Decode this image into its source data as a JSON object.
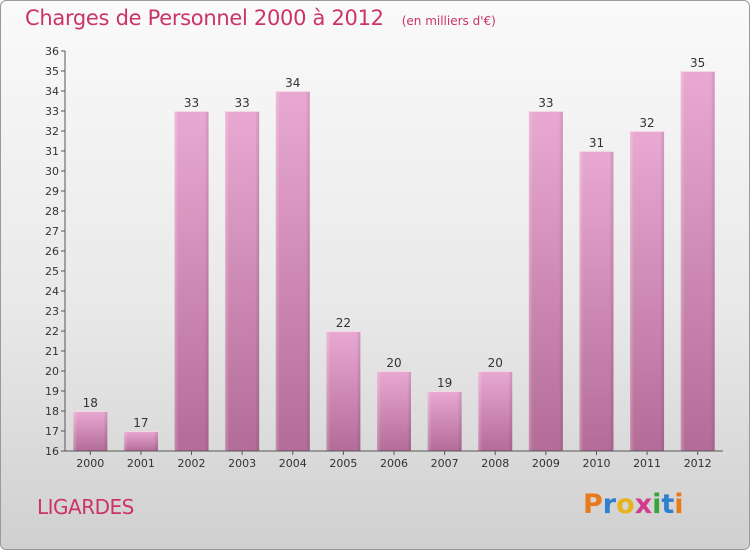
{
  "header": {
    "title": "Charges de Personnel 2000 à 2012",
    "unit": "(en milliers d'€)"
  },
  "footer": {
    "commune": "LIGARDES",
    "logo_text": "Proxiti",
    "logo_colors": [
      "#e87a1c",
      "#2f7fcf",
      "#e8b21c",
      "#d23a8c",
      "#3aa43a",
      "#2f7fcf",
      "#e87a1c"
    ]
  },
  "colors": {
    "title": "#cc3366",
    "bar_top": "#e9a9d2",
    "bar_bottom": "#b36c98",
    "axis": "#444444"
  },
  "chart_data": {
    "type": "bar",
    "title": "Charges de Personnel 2000 à 2012",
    "subtitle": "(en milliers d'€)",
    "categories": [
      "2000",
      "2001",
      "2002",
      "2003",
      "2004",
      "2005",
      "2006",
      "2007",
      "2008",
      "2009",
      "2010",
      "2011",
      "2012"
    ],
    "values": [
      18,
      17,
      33,
      33,
      34,
      22,
      20,
      19,
      20,
      33,
      31,
      32,
      35
    ],
    "ylim": [
      16,
      36
    ],
    "yticks": [
      16,
      17,
      18,
      19,
      20,
      21,
      22,
      23,
      24,
      25,
      26,
      27,
      28,
      29,
      30,
      31,
      32,
      33,
      34,
      35,
      36
    ],
    "grid": false,
    "data_labels": true
  }
}
